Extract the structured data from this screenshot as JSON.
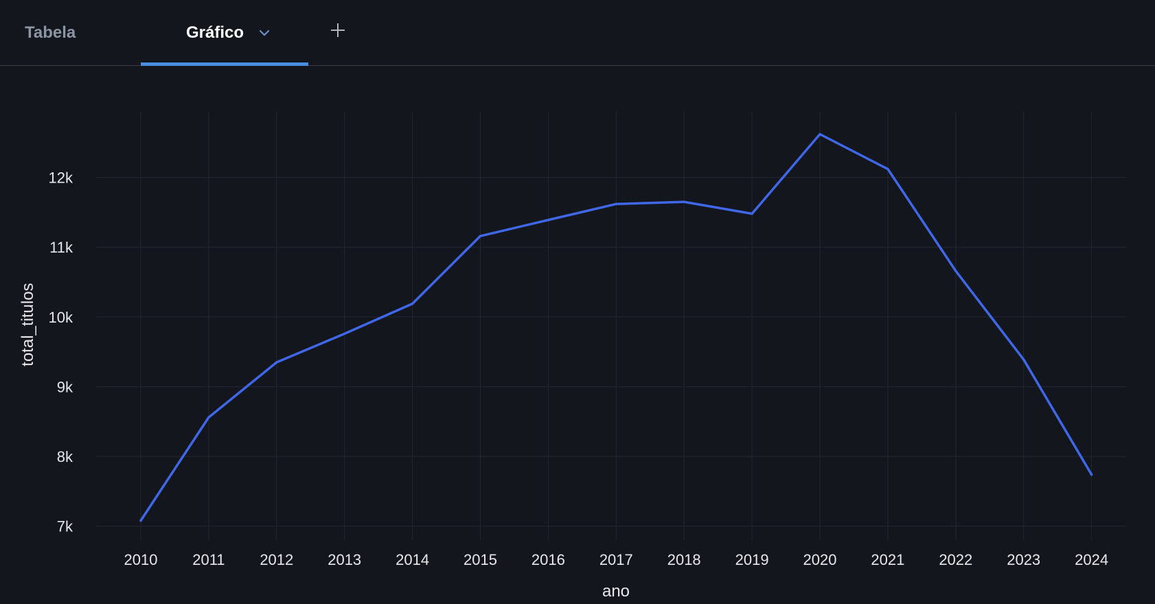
{
  "tabs": {
    "table_label": "Tabela",
    "chart_label": "Gráfico",
    "active": "Gráfico"
  },
  "colors": {
    "background": "#13171d",
    "line": "#3f67e8",
    "accent_tab": "#4a8fdf",
    "grid": "#22272f"
  },
  "icons": {
    "dropdown": "chevron-down-icon",
    "add": "plus-icon"
  },
  "chart_data": {
    "type": "line",
    "title": "",
    "xlabel": "ano",
    "ylabel": "total_titulos",
    "x": [
      "2010",
      "2011",
      "2012",
      "2013",
      "2014",
      "2015",
      "2016",
      "2017",
      "2018",
      "2019",
      "2020",
      "2021",
      "2022",
      "2023",
      "2024"
    ],
    "series": [
      {
        "values": [
          7080,
          8560,
          9350,
          9760,
          10190,
          11160,
          11390,
          11620,
          11650,
          11480,
          12620,
          12120,
          10660,
          9390,
          7740
        ]
      }
    ],
    "ylim": [
      6800,
      12950
    ],
    "yticks": [
      7000,
      8000,
      9000,
      10000,
      11000,
      12000
    ],
    "ytick_labels": [
      "7k",
      "8k",
      "9k",
      "10k",
      "11k",
      "12k"
    ],
    "grid": true,
    "legend": "none"
  }
}
